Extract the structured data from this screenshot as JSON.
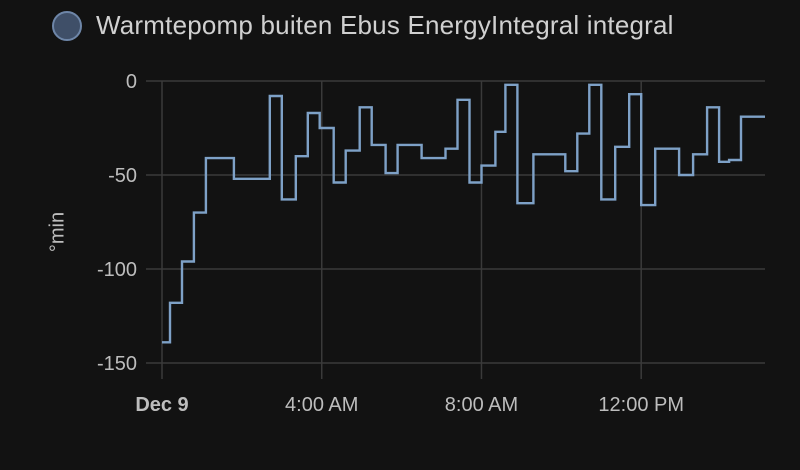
{
  "chart_data": {
    "type": "line",
    "step": true,
    "legend": {
      "label": "Warmtepomp buiten Ebus EnergyIntegral integral",
      "position": "top-left"
    },
    "ylabel": "°min",
    "ylim": [
      -150,
      0
    ],
    "yticks": [
      0,
      -50,
      -100,
      -150
    ],
    "xlim_hours": [
      0,
      15.1
    ],
    "xticks": [
      {
        "hour": 0,
        "label": "Dec 9",
        "bold": true
      },
      {
        "hour": 4,
        "label": "4:00 AM",
        "bold": false
      },
      {
        "hour": 8,
        "label": "8:00 AM",
        "bold": false
      },
      {
        "hour": 12,
        "label": "12:00 PM",
        "bold": false
      }
    ],
    "grid": true,
    "series": [
      {
        "name": "Warmtepomp buiten Ebus EnergyIntegral integral",
        "color": "#7ea1c7",
        "points": [
          [
            0.0,
            -139
          ],
          [
            0.2,
            -118
          ],
          [
            0.5,
            -96
          ],
          [
            0.8,
            -70
          ],
          [
            1.1,
            -41
          ],
          [
            1.8,
            -52
          ],
          [
            2.7,
            -8
          ],
          [
            3.0,
            -63
          ],
          [
            3.35,
            -40
          ],
          [
            3.65,
            -17
          ],
          [
            3.95,
            -25
          ],
          [
            4.3,
            -54
          ],
          [
            4.6,
            -37
          ],
          [
            4.95,
            -14
          ],
          [
            5.25,
            -34
          ],
          [
            5.6,
            -49
          ],
          [
            5.9,
            -34
          ],
          [
            6.5,
            -41
          ],
          [
            7.1,
            -36
          ],
          [
            7.4,
            -10
          ],
          [
            7.7,
            -54
          ],
          [
            8.0,
            -45
          ],
          [
            8.35,
            -27
          ],
          [
            8.6,
            -2
          ],
          [
            8.9,
            -65
          ],
          [
            9.3,
            -39
          ],
          [
            10.1,
            -48
          ],
          [
            10.4,
            -28
          ],
          [
            10.7,
            -2
          ],
          [
            11.0,
            -63
          ],
          [
            11.35,
            -35
          ],
          [
            11.7,
            -7
          ],
          [
            12.0,
            -66
          ],
          [
            12.35,
            -36
          ],
          [
            12.95,
            -50
          ],
          [
            13.3,
            -39
          ],
          [
            13.65,
            -14
          ],
          [
            13.95,
            -43
          ],
          [
            14.2,
            -42
          ],
          [
            14.5,
            -19
          ],
          [
            15.1,
            -19
          ]
        ]
      }
    ]
  }
}
